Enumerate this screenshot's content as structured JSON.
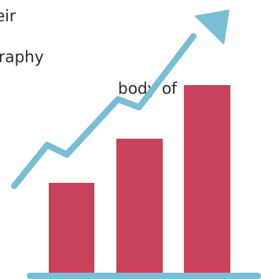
{
  "text_fragments": [
    "eir",
    "raphy",
    "body of"
  ],
  "colors": {
    "bar": "#c9415a",
    "arrow": "#77bed6",
    "baseline": "#77bed6",
    "text": "#2b2b2b"
  },
  "icons": {
    "arrow": "trend-up-arrow-icon"
  }
}
